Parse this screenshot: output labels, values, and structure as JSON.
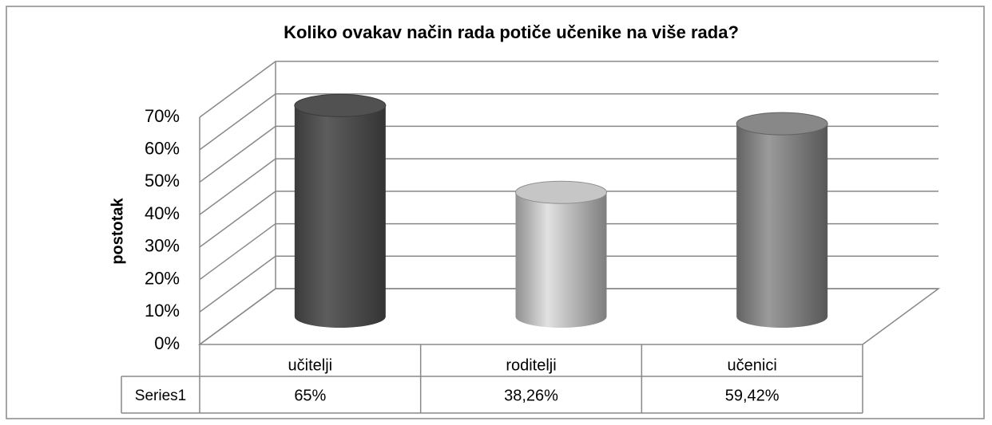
{
  "chart_data": {
    "type": "bar3d-cylinder",
    "title": "Koliko ovakav način rada potiče učenike na više rada?",
    "y_label": "postotak",
    "categories": [
      "učitelji",
      "roditelji",
      "učenici"
    ],
    "series": [
      {
        "name": "Series1",
        "values": [
          65,
          38.26,
          59.42
        ],
        "value_labels": [
          "65%",
          "38,26%",
          "59,42%"
        ],
        "colors": [
          "#4a4a4a",
          "#b4b4b4",
          "#7c7c7c"
        ]
      }
    ],
    "ylim": [
      0,
      70
    ],
    "yticks": [
      {
        "value": 0,
        "label": "0%"
      },
      {
        "value": 10,
        "label": "10%"
      },
      {
        "value": 20,
        "label": "20%"
      },
      {
        "value": 30,
        "label": "30%"
      },
      {
        "value": 40,
        "label": "40%"
      },
      {
        "value": 50,
        "label": "50%"
      },
      {
        "value": 60,
        "label": "60%"
      },
      {
        "value": 70,
        "label": "70%"
      }
    ],
    "grid": true
  }
}
